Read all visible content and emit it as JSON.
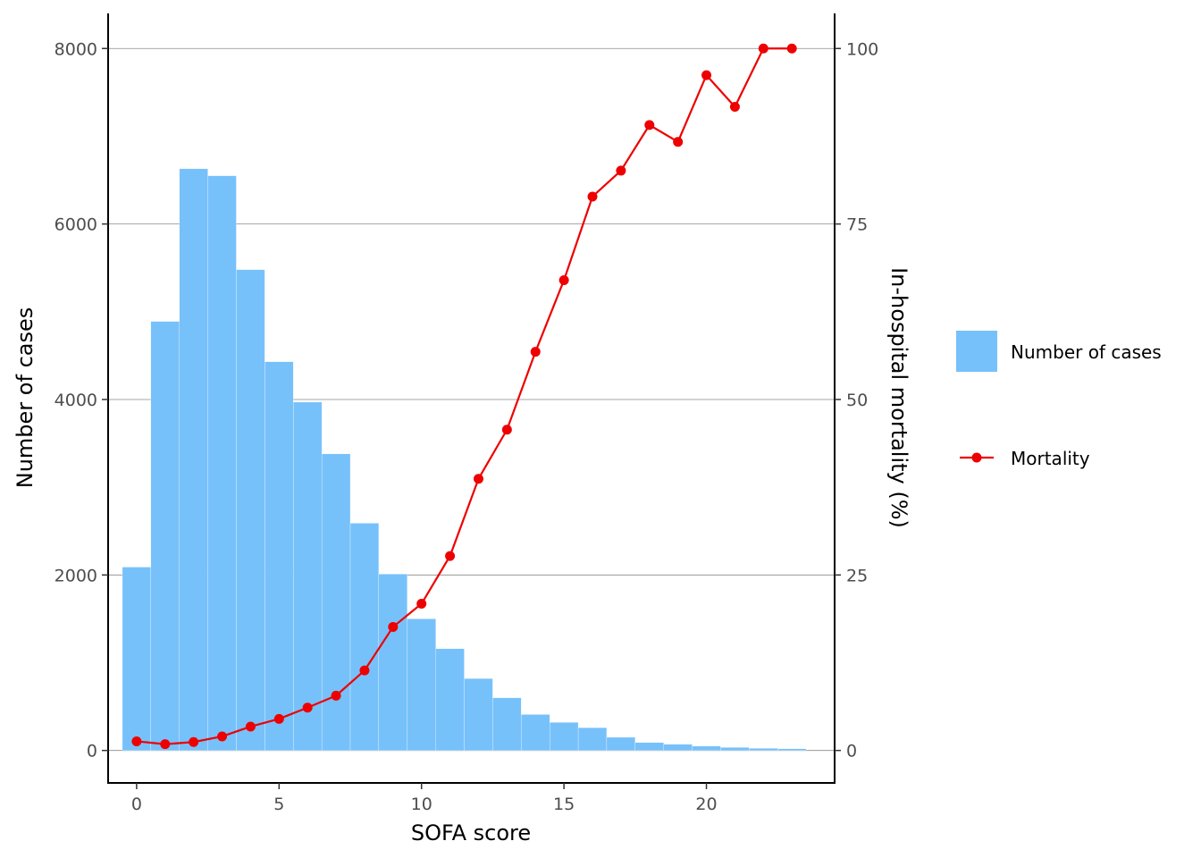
{
  "chart_data": {
    "type": "bar",
    "x": [
      0,
      1,
      2,
      3,
      4,
      5,
      6,
      7,
      8,
      9,
      10,
      11,
      12,
      13,
      14,
      15,
      16,
      17,
      18,
      19,
      20,
      21,
      22,
      23
    ],
    "xlabel": "SOFA score",
    "ylabel": "Number of cases",
    "y2label": "In-hospital mortality (%)",
    "xlim": [
      -1,
      24.5
    ],
    "ylim": [
      -370,
      8400
    ],
    "y2lim": [
      -4.625,
      105
    ],
    "xticks": [
      "0",
      "5",
      "10",
      "15",
      "20"
    ],
    "yticks": [
      "0",
      "2000",
      "4000",
      "6000",
      "8000"
    ],
    "y2ticks": [
      "0",
      "25",
      "50",
      "75",
      "100"
    ],
    "grid": "horizontal",
    "legend_position": "right",
    "series": [
      {
        "name": "Number of cases",
        "type": "bar",
        "axis": "left",
        "color": "#77C1FB",
        "values": [
          2090,
          4890,
          6630,
          6550,
          5480,
          4430,
          3970,
          3380,
          2590,
          2010,
          1500,
          1160,
          820,
          600,
          410,
          320,
          260,
          150,
          90,
          70,
          50,
          35,
          25,
          20
        ]
      },
      {
        "name": "Mortality",
        "type": "line",
        "axis": "right",
        "color": "#EE0000",
        "values": [
          1.3,
          0.9,
          1.2,
          2.0,
          3.4,
          4.5,
          6.1,
          7.8,
          11.4,
          17.6,
          20.9,
          27.7,
          38.7,
          45.7,
          56.8,
          67.0,
          78.9,
          82.6,
          89.1,
          86.7,
          96.2,
          91.7,
          100,
          100
        ]
      }
    ]
  }
}
